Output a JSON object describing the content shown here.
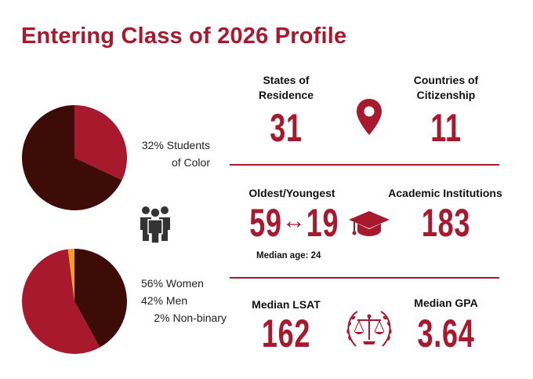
{
  "title": "Entering Class of 2026 Profile",
  "colors": {
    "accent": "#a8192e",
    "dark": "#3e0c06",
    "orange": "#f0a01e"
  },
  "chart_data": [
    {
      "type": "pie",
      "series": [
        {
          "values": [
            32,
            68
          ]
        }
      ],
      "colors": [
        "#a8192e",
        "#3e0c06"
      ],
      "legend": [
        "32% Students",
        "of Color"
      ]
    },
    {
      "type": "pie",
      "series": [
        {
          "values": [
            42,
            56,
            2
          ]
        }
      ],
      "colors": [
        "#3e0c06",
        "#a8192e",
        "#f0a01e"
      ],
      "legend": [
        "56% Women",
        "42% Men",
        "2% Non-binary"
      ]
    }
  ],
  "stats": {
    "states": {
      "label_line1": "States of",
      "label_line2": "Residence",
      "value": "31"
    },
    "countries": {
      "label_line1": "Countries of",
      "label_line2": "Citizenship",
      "value": "11"
    },
    "age": {
      "label": "Oldest/Youngest",
      "oldest": "59",
      "youngest": "19",
      "median_label": "Median age: 24"
    },
    "institutions": {
      "label": "Academic Institutions",
      "value": "183"
    },
    "lsat": {
      "label": "Median LSAT",
      "value": "162"
    },
    "gpa": {
      "label": "Median GPA",
      "value": "3.64"
    }
  },
  "icons": [
    "map-pin-icon",
    "people-group-icon",
    "graduation-cap-icon",
    "scales-of-justice-icon"
  ]
}
